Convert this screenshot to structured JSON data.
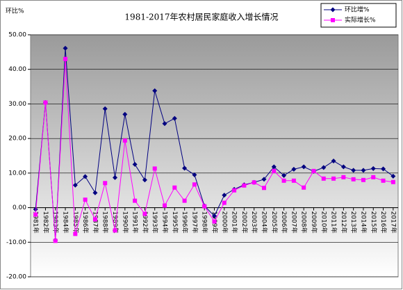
{
  "chart_data": {
    "type": "line",
    "title": "1981-2017年农村居民家庭收入增长情况",
    "y_label": "环比%",
    "categories": [
      "1981年",
      "1982年",
      "1983年",
      "1984年",
      "1985年",
      "1986年",
      "1987年",
      "1988年",
      "1989年",
      "1990年",
      "1991年",
      "1992年",
      "1993年",
      "1994年",
      "1995年",
      "1996年",
      "1997年",
      "1998年",
      "1999年",
      "2000年",
      "2001年",
      "2002年",
      "2003年",
      "2004年",
      "2005年",
      "2006年",
      "2007年",
      "2008年",
      "2009年",
      "2010年",
      "2011年",
      "2012年",
      "2013年",
      "2014年",
      "2015年",
      "2016年",
      "2017年"
    ],
    "series": [
      {
        "name": "环比增%",
        "color": "#000080",
        "values": [
          -0.5,
          30.4,
          -9.4,
          46.1,
          6.5,
          9.0,
          4.3,
          28.6,
          8.7,
          27.0,
          12.5,
          8.0,
          33.8,
          24.3,
          25.8,
          11.4,
          9.5,
          0.5,
          -2.4,
          3.6,
          5.3,
          6.6,
          7.3,
          8.2,
          11.8,
          9.3,
          11.1,
          11.8,
          10.5,
          11.6,
          13.5,
          11.8,
          10.8,
          10.8,
          11.3,
          11.2,
          9.1
        ]
      },
      {
        "name": "实际增长%",
        "color": "#ff00ff",
        "values": [
          -2.0,
          30.4,
          -9.6,
          43.0,
          -7.6,
          2.3,
          -3.4,
          7.1,
          -6.6,
          19.4,
          2.0,
          -1.8,
          11.3,
          0.6,
          5.8,
          2.0,
          6.7,
          0.4,
          -4.0,
          1.4,
          5.0,
          6.4,
          7.3,
          5.7,
          10.6,
          7.8,
          7.8,
          5.8,
          10.6,
          8.4,
          8.4,
          8.8,
          8.2,
          8.0,
          8.8,
          7.8,
          7.4
        ]
      }
    ],
    "ylim": [
      -20,
      50
    ],
    "yticks": [
      {
        "value": -20,
        "label": "-20.00"
      },
      {
        "value": -10,
        "label": "-10.00"
      },
      {
        "value": 0,
        "label": "0.00"
      },
      {
        "value": 10,
        "label": "10.00"
      },
      {
        "value": 20,
        "label": "20.00"
      },
      {
        "value": 30,
        "label": "30.00"
      },
      {
        "value": 40,
        "label": "40.00"
      },
      {
        "value": 50,
        "label": "50.00"
      }
    ],
    "grid": true
  }
}
